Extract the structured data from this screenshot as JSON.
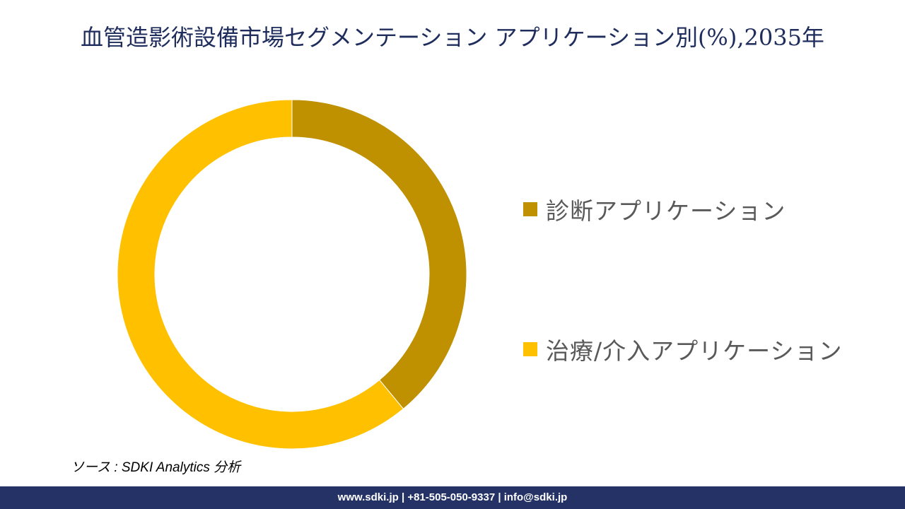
{
  "chart_data": {
    "type": "pie",
    "title": "血管造影術設備市場セグメンテーション アプリケーション別(%),2035年",
    "categories": [
      "診断アプリケーション",
      "治療/介入アプリケーション"
    ],
    "values": [
      39,
      61
    ],
    "colors": [
      "#bf9000",
      "#ffc000"
    ],
    "legend_position": "right"
  },
  "source": "ソース : SDKI Analytics 分析",
  "footer": "www.sdki.jp | +81-505-050-9337 | info@sdki.jp"
}
